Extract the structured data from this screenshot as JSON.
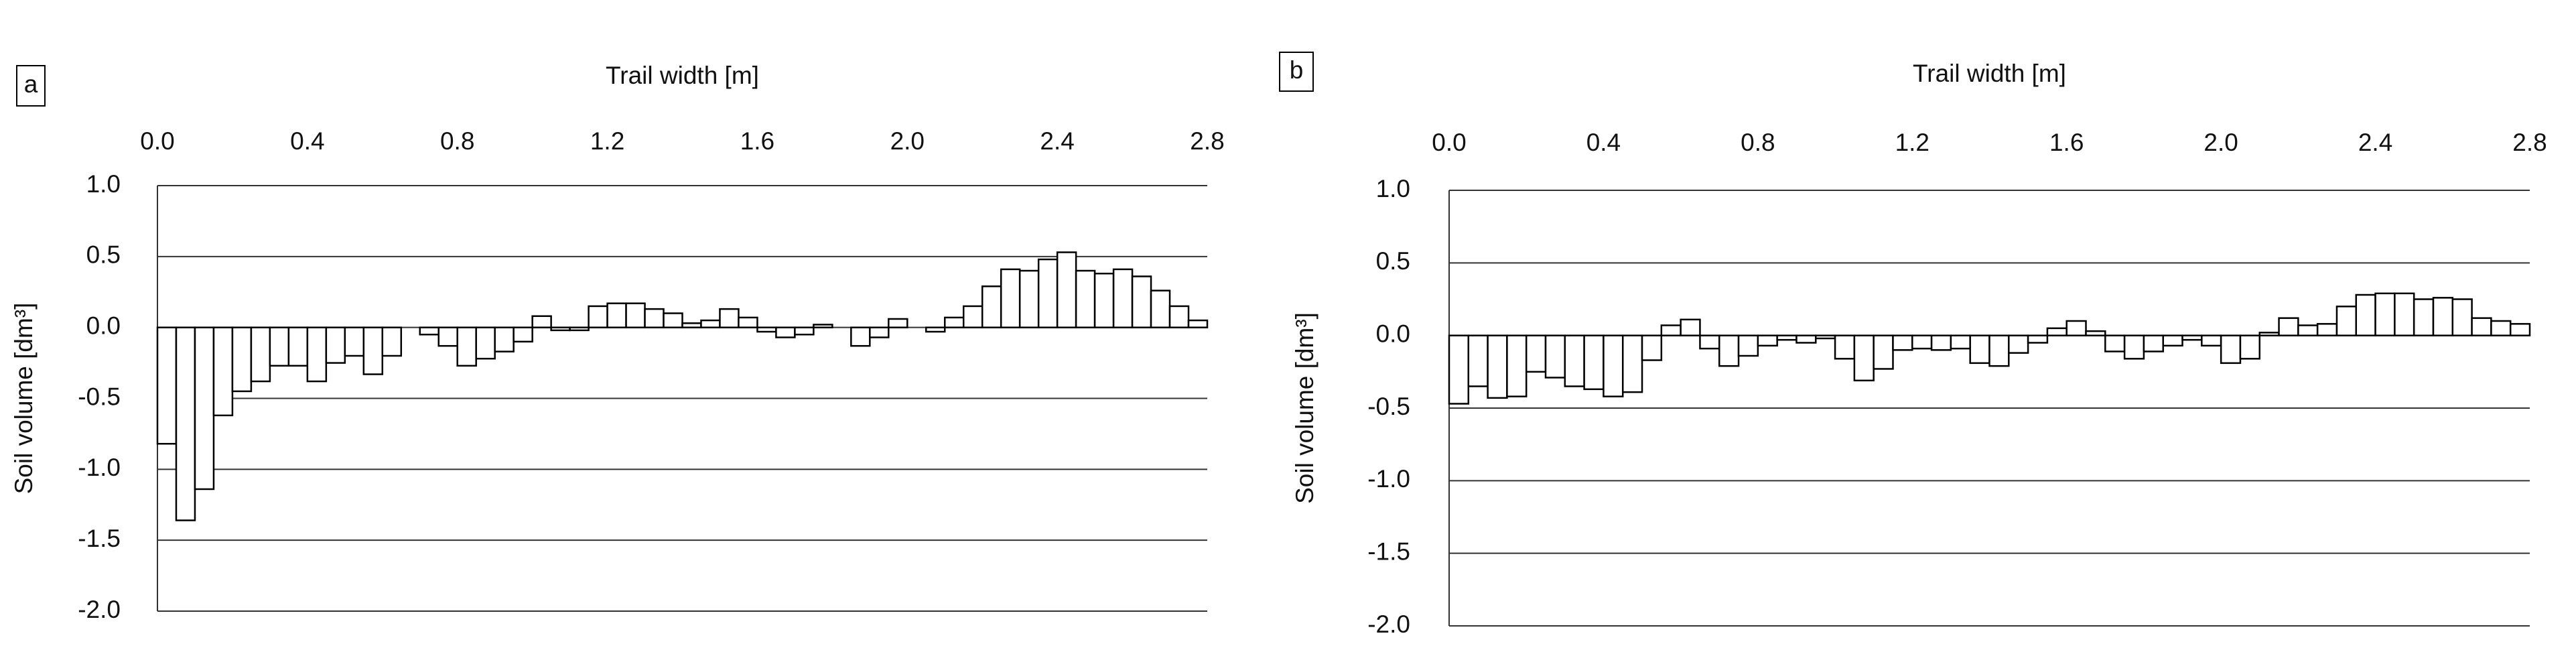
{
  "chart_data": [
    {
      "type": "histogram",
      "panel_label": "a",
      "x_label": "Trail width [m]",
      "y_label": "Soil volume [dm³]",
      "bins": [
        0,
        0.05,
        0.1,
        0.15,
        0.2,
        0.25,
        0.3,
        0.35,
        0.4,
        0.45,
        0.5,
        0.55,
        0.6,
        0.65,
        0.7,
        0.75,
        0.8,
        0.85,
        0.9,
        0.95,
        1,
        1.05,
        1.1,
        1.15,
        1.2,
        1.25,
        1.3,
        1.35,
        1.4,
        1.45,
        1.5,
        1.55,
        1.6,
        1.65,
        1.7,
        1.75,
        1.8,
        1.85,
        1.9,
        1.95,
        2,
        2.05,
        2.1,
        2.15,
        2.2,
        2.25,
        2.3,
        2.35,
        2.4,
        2.45,
        2.5,
        2.55,
        2.6,
        2.65,
        2.7,
        2.75,
        2.8
      ],
      "values": [
        -0.82,
        -1.36,
        -1.14,
        -0.62,
        -0.45,
        -0.38,
        -0.27,
        -0.27,
        -0.38,
        -0.25,
        -0.2,
        -0.33,
        -0.2,
        0.0,
        -0.05,
        -0.13,
        -0.27,
        -0.22,
        -0.17,
        -0.1,
        0.08,
        -0.02,
        -0.02,
        0.15,
        0.17,
        0.17,
        0.13,
        0.1,
        0.03,
        0.05,
        0.13,
        0.07,
        -0.03,
        -0.07,
        -0.05,
        0.02,
        0.0,
        -0.13,
        -0.07,
        0.06,
        0.0,
        -0.03,
        0.07,
        0.15,
        0.29,
        0.41,
        0.4,
        0.48,
        0.53,
        0.4,
        0.38,
        0.41,
        0.36,
        0.26,
        0.15,
        0.05
      ],
      "color": "#ffffff",
      "edge_color": "#000000",
      "xlim": [
        0,
        2.8
      ],
      "xticks": [
        {
          "value": 0,
          "label": "0.0"
        },
        0.4,
        0.8,
        1.2,
        1.6,
        {
          "value": 2,
          "label": "2.0"
        },
        2.4,
        2.8
      ],
      "ylim": [
        -2,
        1
      ],
      "yticks": [
        {
          "value": 1,
          "label": "1.0"
        },
        0.5,
        {
          "value": 0,
          "label": "0.0"
        },
        -0.5,
        {
          "value": -1,
          "label": "-1.0"
        },
        -1.5,
        {
          "value": -2,
          "label": "-2.0"
        }
      ],
      "x_axis_position": "top",
      "grid": true
    },
    {
      "type": "histogram",
      "panel_label": "b",
      "x_label": "Trail width [m]",
      "y_label": "Soil volume [dm³]",
      "bins": [
        0,
        0.05,
        0.1,
        0.15,
        0.2,
        0.25,
        0.3,
        0.35,
        0.4,
        0.45,
        0.5,
        0.55,
        0.6,
        0.65,
        0.7,
        0.75,
        0.8,
        0.85,
        0.9,
        0.95,
        1,
        1.05,
        1.1,
        1.15,
        1.2,
        1.25,
        1.3,
        1.35,
        1.4,
        1.45,
        1.5,
        1.55,
        1.6,
        1.65,
        1.7,
        1.75,
        1.8,
        1.85,
        1.9,
        1.95,
        2,
        2.05,
        2.1,
        2.15,
        2.2,
        2.25,
        2.3,
        2.35,
        2.4,
        2.45,
        2.5,
        2.55,
        2.6,
        2.65,
        2.7,
        2.75,
        2.8
      ],
      "values": [
        -0.47,
        -0.35,
        -0.43,
        -0.42,
        -0.25,
        -0.29,
        -0.35,
        -0.37,
        -0.42,
        -0.39,
        -0.17,
        0.07,
        0.11,
        -0.09,
        -0.21,
        -0.14,
        -0.07,
        -0.03,
        -0.05,
        -0.02,
        -0.16,
        -0.31,
        -0.23,
        -0.1,
        -0.09,
        -0.1,
        -0.09,
        -0.19,
        -0.21,
        -0.12,
        -0.05,
        0.05,
        0.1,
        0.03,
        -0.11,
        -0.16,
        -0.11,
        -0.07,
        -0.03,
        -0.07,
        -0.19,
        -0.16,
        0.02,
        0.12,
        0.07,
        0.08,
        0.2,
        0.28,
        0.29,
        0.29,
        0.25,
        0.26,
        0.25,
        0.12,
        0.1,
        0.08
      ],
      "color": "#ffffff",
      "edge_color": "#000000",
      "xlim": [
        0,
        2.8
      ],
      "xticks": [
        {
          "value": 0,
          "label": "0.0"
        },
        0.4,
        0.8,
        1.2,
        1.6,
        {
          "value": 2,
          "label": "2.0"
        },
        2.4,
        2.8
      ],
      "ylim": [
        -2,
        1
      ],
      "yticks": [
        {
          "value": 1,
          "label": "1.0"
        },
        0.5,
        {
          "value": 0,
          "label": "0.0"
        },
        -0.5,
        {
          "value": -1,
          "label": "-1.0"
        },
        -1.5,
        {
          "value": -2,
          "label": "-2.0"
        }
      ],
      "x_axis_position": "top",
      "grid": true
    }
  ]
}
